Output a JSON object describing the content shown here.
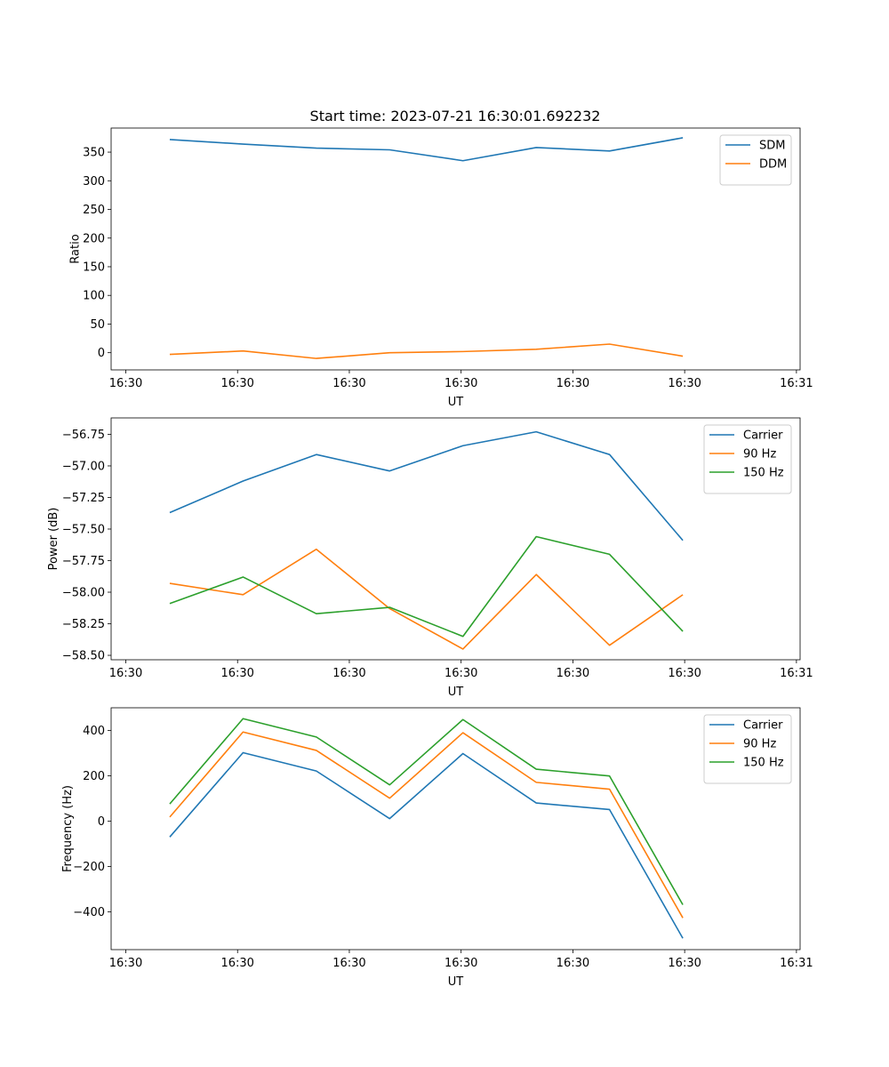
{
  "figure_title": "Start time: 2023-07-21 16:30:01.692232",
  "colors": {
    "blue": "#1f77b4",
    "orange": "#ff7f0e",
    "green": "#2ca02c",
    "axis": "#000000"
  },
  "chart_data": [
    {
      "type": "line",
      "title": "Start time: 2023-07-21 16:30:01.692232",
      "xlabel": "UT",
      "ylabel": "Ratio",
      "x": [
        1,
        2,
        3,
        4,
        5,
        6,
        7,
        8
      ],
      "xlim": [
        0.2,
        9.6
      ],
      "x_ticks": [
        0.4,
        1.925,
        3.45,
        4.975,
        6.5,
        8.025,
        9.55
      ],
      "x_tick_labels": [
        "16:30",
        "16:30",
        "16:30",
        "16:30",
        "16:30",
        "16:30",
        "16:31"
      ],
      "ylim": [
        -30,
        392
      ],
      "y_ticks": [
        0,
        50,
        100,
        150,
        200,
        250,
        300,
        350
      ],
      "y_tick_labels": [
        "0",
        "50",
        "100",
        "150",
        "200",
        "250",
        "300",
        "350"
      ],
      "legend_position": "top-right",
      "grid": false,
      "series": [
        {
          "name": "SDM",
          "color": "#1f77b4",
          "values": [
            372,
            364,
            357,
            354,
            335,
            358,
            352,
            375
          ]
        },
        {
          "name": "DDM",
          "color": "#ff7f0e",
          "values": [
            -3,
            3,
            -10,
            0,
            2,
            6,
            15,
            -6
          ]
        }
      ]
    },
    {
      "type": "line",
      "xlabel": "UT",
      "ylabel": "Power (dB)",
      "x": [
        1,
        2,
        3,
        4,
        5,
        6,
        7,
        8
      ],
      "xlim": [
        0.2,
        9.6
      ],
      "x_ticks": [
        0.4,
        1.925,
        3.45,
        4.975,
        6.5,
        8.025,
        9.55
      ],
      "x_tick_labels": [
        "16:30",
        "16:30",
        "16:30",
        "16:30",
        "16:30",
        "16:30",
        "16:31"
      ],
      "ylim": [
        -58.535,
        -56.62
      ],
      "y_ticks": [
        -58.5,
        -58.25,
        -58.0,
        -57.75,
        -57.5,
        -57.25,
        -57.0,
        -56.75
      ],
      "y_tick_labels": [
        "−58.50",
        "−58.25",
        "−58.00",
        "−57.75",
        "−57.50",
        "−57.25",
        "−57.00",
        "−56.75"
      ],
      "legend_position": "top-right",
      "grid": false,
      "series": [
        {
          "name": "Carrier",
          "color": "#1f77b4",
          "values": [
            -57.37,
            -57.12,
            -56.91,
            -57.04,
            -56.84,
            -56.73,
            -56.91,
            -57.59
          ]
        },
        {
          "name": "90 Hz",
          "color": "#ff7f0e",
          "values": [
            -57.93,
            -58.02,
            -57.66,
            -58.13,
            -58.45,
            -57.86,
            -58.42,
            -58.02
          ]
        },
        {
          "name": "150 Hz",
          "color": "#2ca02c",
          "values": [
            -58.09,
            -57.88,
            -58.17,
            -58.12,
            -58.35,
            -57.56,
            -57.7,
            -58.31
          ]
        }
      ]
    },
    {
      "type": "line",
      "xlabel": "UT",
      "ylabel": "Frequency (Hz)",
      "x": [
        1,
        2,
        3,
        4,
        5,
        6,
        7,
        8
      ],
      "xlim": [
        0.2,
        9.6
      ],
      "x_ticks": [
        0.4,
        1.925,
        3.45,
        4.975,
        6.5,
        8.025,
        9.55
      ],
      "x_tick_labels": [
        "16:30",
        "16:30",
        "16:30",
        "16:30",
        "16:30",
        "16:30",
        "16:31"
      ],
      "ylim": [
        -567,
        500
      ],
      "y_ticks": [
        -400,
        -200,
        0,
        200,
        400
      ],
      "y_tick_labels": [
        "−400",
        "−200",
        "0",
        "200",
        "400"
      ],
      "legend_position": "top-right",
      "grid": false,
      "series": [
        {
          "name": "Carrier",
          "color": "#1f77b4",
          "values": [
            -70,
            302,
            221,
            11,
            298,
            80,
            51,
            -517
          ]
        },
        {
          "name": "90 Hz",
          "color": "#ff7f0e",
          "values": [
            18,
            393,
            312,
            101,
            390,
            171,
            141,
            -427
          ]
        },
        {
          "name": "150 Hz",
          "color": "#2ca02c",
          "values": [
            76,
            452,
            371,
            160,
            448,
            229,
            199,
            -369
          ]
        }
      ]
    }
  ]
}
